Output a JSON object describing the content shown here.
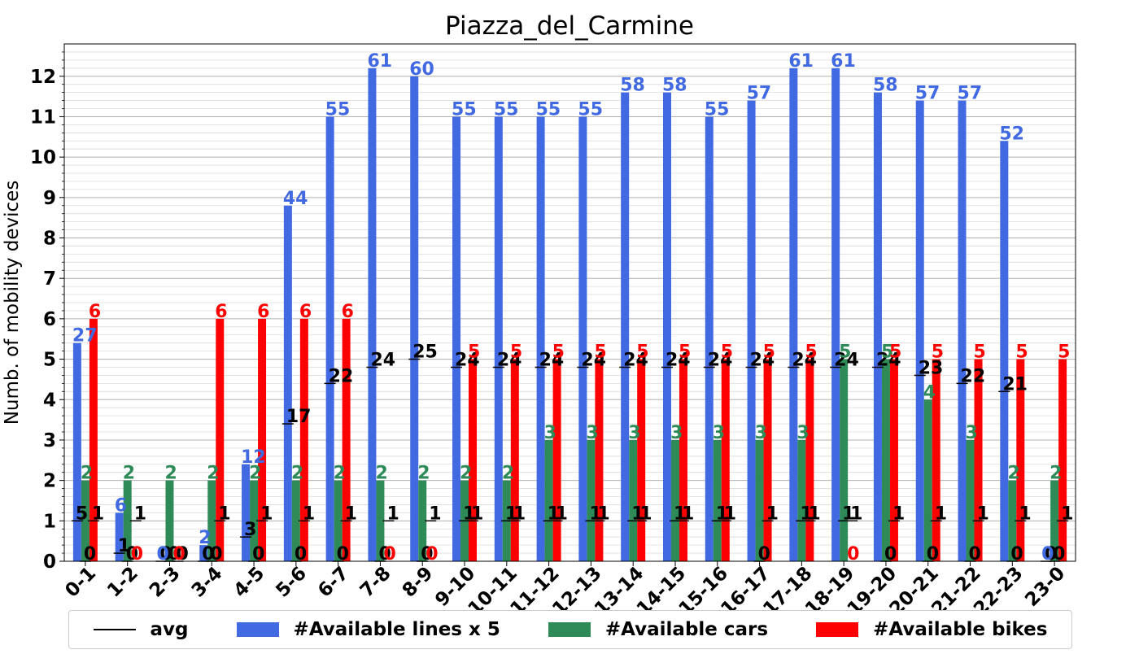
{
  "chart_data": {
    "type": "bar",
    "title": "Piazza_del_Carmine",
    "xlabel": "",
    "ylabel": "Numb. of mobility devices",
    "ylim": [
      0,
      12.8
    ],
    "yticks": [
      "0",
      "1",
      "2",
      "3",
      "4",
      "5",
      "6",
      "7",
      "8",
      "9",
      "10",
      "11",
      "12"
    ],
    "grid": true,
    "legend_position": "bottom",
    "categories": [
      "0-1",
      "1-2",
      "2-3",
      "3-4",
      "4-5",
      "5-6",
      "6-7",
      "7-8",
      "8-9",
      "9-10",
      "10-11",
      "11-12",
      "12-13",
      "13-14",
      "14-15",
      "15-16",
      "16-17",
      "17-18",
      "18-19",
      "19-20",
      "20-21",
      "21-22",
      "22-23",
      "23-0"
    ],
    "series": [
      {
        "name": "#Available lines x 5",
        "color": "#4169e1",
        "values": [
          5.4,
          1.2,
          0,
          0.4,
          2.4,
          8.8,
          11,
          12.2,
          12,
          11,
          11,
          11,
          11,
          11.6,
          11.6,
          11,
          11.4,
          12.2,
          12.2,
          11.6,
          11.4,
          11.4,
          10.4,
          0
        ],
        "labels": [
          "27",
          "6",
          "0",
          "2",
          "12",
          "44",
          "55",
          "61",
          "60",
          "55",
          "55",
          "55",
          "55",
          "58",
          "58",
          "55",
          "57",
          "61",
          "61",
          "58",
          "57",
          "57",
          "52",
          "0"
        ]
      },
      {
        "name": "#Available cars",
        "color": "#2e8b57",
        "values": [
          2,
          2,
          2,
          2,
          2,
          2,
          2,
          2,
          2,
          2,
          2,
          3,
          3,
          3,
          3,
          3,
          3,
          3,
          5,
          5,
          4,
          3,
          2,
          2
        ],
        "labels": [
          "2",
          "2",
          "2",
          "2",
          "2",
          "2",
          "2",
          "2",
          "2",
          "2",
          "2",
          "3",
          "3",
          "3",
          "3",
          "3",
          "3",
          "3",
          "5",
          "5",
          "4",
          "3",
          "2",
          "2"
        ]
      },
      {
        "name": "#Available bikes",
        "color": "#ff0000",
        "values": [
          6,
          0,
          0,
          6,
          6,
          6,
          6,
          0,
          0,
          5,
          5,
          5,
          5,
          5,
          5,
          5,
          5,
          5,
          0,
          5,
          5,
          5,
          5,
          5
        ],
        "labels": [
          "6",
          "0",
          "0",
          "6",
          "6",
          "6",
          "6",
          "0",
          "0",
          "5",
          "5",
          "5",
          "5",
          "5",
          "5",
          "5",
          "5",
          "5",
          "0",
          "5",
          "5",
          "5",
          "5",
          "5"
        ]
      }
    ],
    "averages": {
      "name": "avg",
      "color": "#000000",
      "lines": [
        5,
        1,
        0,
        0,
        3,
        17,
        22,
        24,
        25,
        24,
        24,
        24,
        24,
        24,
        24,
        24,
        24,
        24,
        24,
        24,
        23,
        22,
        21,
        0
      ],
      "cars": [
        0,
        0,
        0,
        0,
        0,
        0,
        0,
        0,
        0,
        1,
        1,
        1,
        1,
        1,
        1,
        1,
        0,
        1,
        1,
        0,
        0,
        0,
        0,
        0
      ],
      "bikes": [
        1,
        1,
        0,
        1,
        1,
        1,
        1,
        1,
        1,
        1,
        1,
        1,
        1,
        1,
        1,
        1,
        1,
        1,
        1,
        1,
        1,
        1,
        1,
        1
      ]
    }
  }
}
